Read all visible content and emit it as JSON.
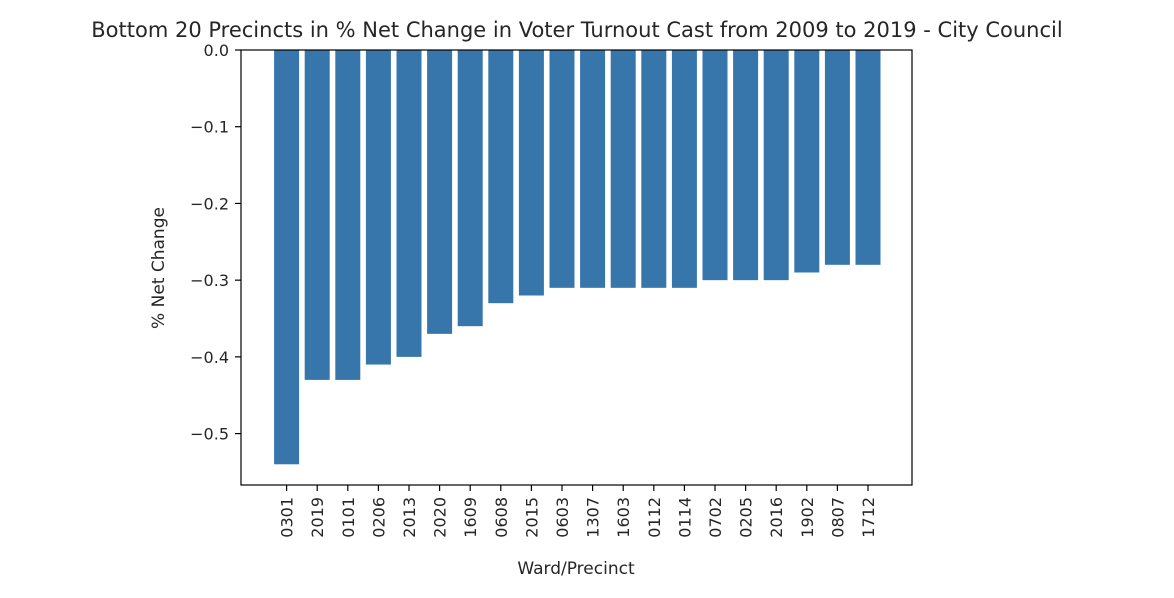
{
  "chart_data": {
    "type": "bar",
    "title": "Bottom 20 Precincts in % Net Change in Voter Turnout Cast from 2009 to 2019 - City Council",
    "xlabel": "Ward/Precinct",
    "ylabel": "% Net Change",
    "categories": [
      "0301",
      "2019",
      "0101",
      "0206",
      "2013",
      "2020",
      "1609",
      "0608",
      "2015",
      "0603",
      "1307",
      "1603",
      "0112",
      "0114",
      "0702",
      "0205",
      "2016",
      "1902",
      "0807",
      "1712"
    ],
    "values": [
      -0.54,
      -0.43,
      -0.43,
      -0.41,
      -0.4,
      -0.37,
      -0.36,
      -0.33,
      -0.32,
      -0.31,
      -0.31,
      -0.31,
      -0.31,
      -0.31,
      -0.3,
      -0.3,
      -0.3,
      -0.29,
      -0.28,
      -0.28
    ],
    "ylim": [
      -0.567,
      0.0
    ],
    "yticks": [
      0.0,
      -0.1,
      -0.2,
      -0.3,
      -0.4,
      -0.5
    ],
    "ytick_labels": [
      "0.0",
      "−0.1",
      "−0.2",
      "−0.3",
      "−0.4",
      "−0.5"
    ],
    "grid": false,
    "bar_color": "#3776ab"
  }
}
